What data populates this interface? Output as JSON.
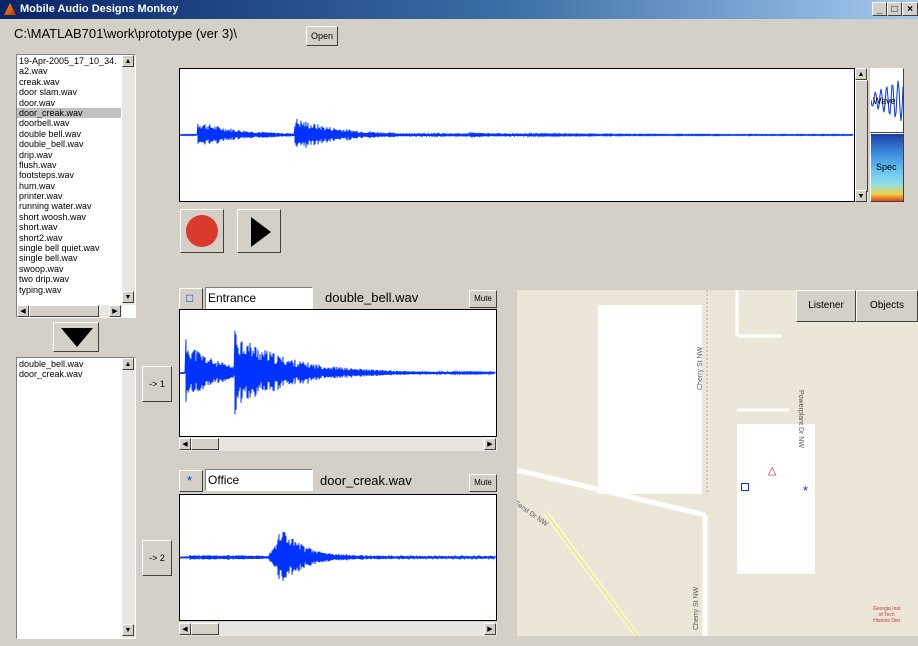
{
  "window": {
    "title": "Mobile Audio Designs Monkey",
    "minimize": "_",
    "maximize": "□",
    "close": "×"
  },
  "path": {
    "value": "C:\\MATLAB701\\work\\prototype (ver 3)\\",
    "open_label": "Open"
  },
  "file_list": {
    "items": [
      "19-Apr-2005_17_10_34.",
      "a2.wav",
      "creak.wav",
      "door slam.wav",
      "door.wav",
      "door_creak.wav",
      "doorbell.wav",
      "double bell.wav",
      "double_bell.wav",
      "drip.wav",
      "flush.wav",
      "footsteps.wav",
      "hum.wav",
      "printer.wav",
      "running water.wav",
      "short woosh.wav",
      "short.wav",
      "short2.wav",
      "single bell quiet.wav",
      "single bell.wav",
      "swoop.wav",
      "two drip.wav",
      "typing.wav"
    ],
    "selected": "door_creak.wav"
  },
  "queue_list": {
    "items": [
      "double_bell.wav",
      "door_creak.wav"
    ]
  },
  "assign1_label": "-> 1",
  "assign2_label": "-> 2",
  "view_toggle": {
    "wave_label": "Wave",
    "spec_label": "Spec"
  },
  "tracks": [
    {
      "location": "Entrance",
      "file": "double_bell.wav",
      "mute_label": "Mute",
      "marker": "□"
    },
    {
      "location": "Office",
      "file": "door_creak.wav",
      "mute_label": "Mute",
      "marker": "*"
    }
  ],
  "map": {
    "listener_label": "Listener",
    "objects_label": "Objects",
    "street_labels": [
      "Cherry St NW",
      "Powerplant Dr NW",
      "Ferst Dr NW",
      "Cherry St NW"
    ],
    "stamp": [
      "Georgia Inst",
      "of Tech",
      "Historic Dist"
    ],
    "listener_marker": "△"
  },
  "colors": {
    "wave": "#0033ff",
    "record": "#d93a2b",
    "titlebar": "#0a246a"
  }
}
